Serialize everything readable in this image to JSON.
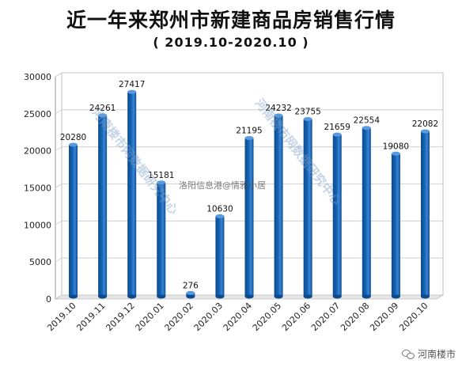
{
  "chart_data": {
    "type": "bar",
    "title": "近一年来郑州市新建商品房销售行情",
    "subtitle": "( 2019.10-2020.10 )",
    "categories": [
      "2019.10",
      "2019.11",
      "2019.12",
      "2020.01",
      "2020.02",
      "2020.03",
      "2020.04",
      "2020.05",
      "2020.06",
      "2020.07",
      "2020.08",
      "2020.09",
      "2020.10"
    ],
    "values": [
      20280,
      24261,
      27417,
      15181,
      276,
      10630,
      21195,
      24232,
      23755,
      21659,
      22554,
      19080,
      22082
    ],
    "data_labels": [
      "20280",
      "24261",
      "27417",
      "15181",
      "276",
      "10630",
      "21195",
      "24232",
      "23755",
      "21659",
      "22554",
      "19080",
      "22082"
    ],
    "y_ticks": [
      "0",
      "5000",
      "10000",
      "15000",
      "20000",
      "25000",
      "30000"
    ],
    "ylim": [
      0,
      30000
    ],
    "xlabel": "",
    "ylabel": "",
    "grid": true,
    "legend": "none",
    "bar_color": "#1565b4",
    "bar_top_color": "#5a9be0"
  },
  "watermarks": {
    "center": "洛阳信息港@情雅小居",
    "diagonal": "河南楼市网数据研究中心"
  },
  "source_badge": {
    "icon": "wechat-icon",
    "label": "河南楼市"
  }
}
